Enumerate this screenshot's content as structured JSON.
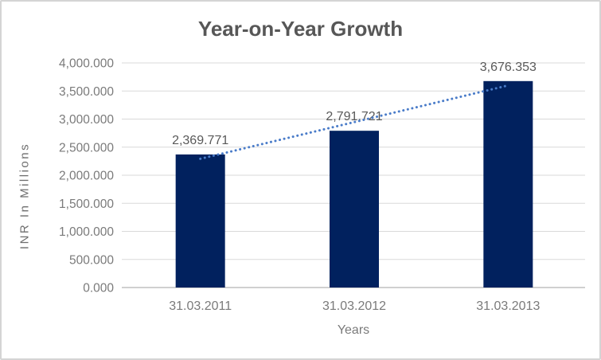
{
  "chart_data": {
    "type": "bar",
    "title": "Year-on-Year Growth",
    "xlabel": "Years",
    "ylabel": "INR In Millions",
    "categories": [
      "31.03.2011",
      "31.03.2012",
      "31.03.2013"
    ],
    "values": [
      2369.771,
      2791.721,
      3676.353
    ],
    "data_labels": [
      "2,369.771",
      "2,791.721",
      "3,676.353"
    ],
    "ylim": [
      0,
      4000
    ],
    "ytick_interval": 500,
    "yticks": [
      {
        "value": 4000,
        "label": "4,000.000"
      },
      {
        "value": 3500,
        "label": "3,500.000"
      },
      {
        "value": 3000,
        "label": "3,000.000"
      },
      {
        "value": 2500,
        "label": "2,500.000"
      },
      {
        "value": 2000,
        "label": "2,000.000"
      },
      {
        "value": 1500,
        "label": "1,500.000"
      },
      {
        "value": 1000,
        "label": "1,000.000"
      },
      {
        "value": 500,
        "label": "500.000"
      },
      {
        "value": 0,
        "label": "0.000"
      }
    ],
    "grid": "horizontal",
    "legend": "none",
    "trendline": {
      "type": "linear",
      "style": "dotted"
    },
    "colors": {
      "bar": "#01215E",
      "trendline": "#4A7CC9",
      "gridline": "#D9D9D9",
      "axis_line": "#C0C0C0",
      "title_text": "#575757",
      "tick_text": "#7A7A7A",
      "data_label_text": "#595959",
      "axis_title_text": "#6E6E6E",
      "frame_border": "#D4D4D4",
      "background": "#FFFFFF"
    }
  }
}
